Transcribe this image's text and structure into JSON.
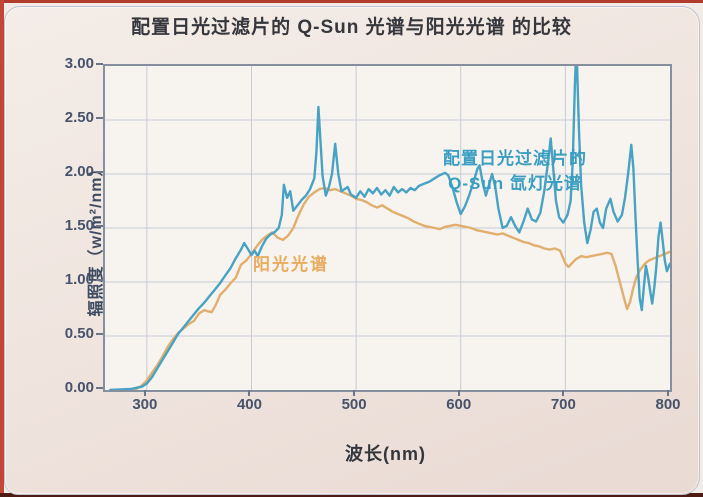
{
  "page": {
    "title": "配置日光过滤片的 Q-Sun 光谱与阳光光谱 的比较"
  },
  "chart_data": {
    "type": "line",
    "title": "配置日光过滤片的 Q-Sun 光谱与阳光光谱 的比较",
    "xlabel": "波长(nm)",
    "ylabel": "辐照度（w/m²/nm）",
    "xlim": [
      260,
      800
    ],
    "ylim": [
      0,
      3.0
    ],
    "grid": true,
    "legend_position": "inline-annotations",
    "xticks": [
      300,
      400,
      500,
      600,
      700,
      800
    ],
    "xtick_labels": [
      "300",
      "400",
      "500",
      "600",
      "700",
      "800"
    ],
    "yticks": [
      0,
      0.5,
      1.0,
      1.5,
      2.0,
      2.5,
      3.0
    ],
    "ytick_labels": [
      "0.00",
      "0.50",
      "1.00",
      "1.50",
      "2.00",
      "2.50",
      "3.00"
    ],
    "annotations": [
      {
        "lines": [
          "配置日光过滤片的",
          "Q-Sun 氙灯光谱"
        ],
        "color": "#3a9ec2",
        "series": "qsun"
      },
      {
        "lines": [
          "阳光光谱"
        ],
        "color": "#e9ab5e",
        "series": "sunlight"
      }
    ],
    "series": [
      {
        "id": "sunlight",
        "name": "阳光光谱",
        "color": "#e2ae6e",
        "width": 2.4,
        "points": [
          [
            265,
            0.0
          ],
          [
            285,
            0.0
          ],
          [
            290,
            0.01
          ],
          [
            295,
            0.04
          ],
          [
            300,
            0.09
          ],
          [
            305,
            0.16
          ],
          [
            310,
            0.23
          ],
          [
            315,
            0.31
          ],
          [
            320,
            0.4
          ],
          [
            325,
            0.47
          ],
          [
            330,
            0.53
          ],
          [
            335,
            0.57
          ],
          [
            340,
            0.61
          ],
          [
            345,
            0.64
          ],
          [
            350,
            0.71
          ],
          [
            355,
            0.74
          ],
          [
            358,
            0.73
          ],
          [
            362,
            0.72
          ],
          [
            366,
            0.79
          ],
          [
            370,
            0.88
          ],
          [
            375,
            0.93
          ],
          [
            380,
            0.99
          ],
          [
            385,
            1.04
          ],
          [
            390,
            1.16
          ],
          [
            395,
            1.2
          ],
          [
            400,
            1.26
          ],
          [
            405,
            1.33
          ],
          [
            410,
            1.39
          ],
          [
            415,
            1.43
          ],
          [
            420,
            1.46
          ],
          [
            425,
            1.41
          ],
          [
            430,
            1.39
          ],
          [
            435,
            1.43
          ],
          [
            440,
            1.5
          ],
          [
            445,
            1.62
          ],
          [
            450,
            1.72
          ],
          [
            455,
            1.79
          ],
          [
            460,
            1.83
          ],
          [
            465,
            1.86
          ],
          [
            470,
            1.87
          ],
          [
            475,
            1.85
          ],
          [
            480,
            1.86
          ],
          [
            485,
            1.84
          ],
          [
            490,
            1.82
          ],
          [
            495,
            1.8
          ],
          [
            500,
            1.77
          ],
          [
            505,
            1.76
          ],
          [
            510,
            1.74
          ],
          [
            515,
            1.71
          ],
          [
            520,
            1.69
          ],
          [
            525,
            1.71
          ],
          [
            530,
            1.68
          ],
          [
            535,
            1.65
          ],
          [
            540,
            1.63
          ],
          [
            545,
            1.61
          ],
          [
            550,
            1.59
          ],
          [
            555,
            1.56
          ],
          [
            560,
            1.54
          ],
          [
            565,
            1.52
          ],
          [
            570,
            1.51
          ],
          [
            575,
            1.5
          ],
          [
            580,
            1.49
          ],
          [
            585,
            1.51
          ],
          [
            590,
            1.52
          ],
          [
            595,
            1.53
          ],
          [
            600,
            1.52
          ],
          [
            605,
            1.51
          ],
          [
            610,
            1.5
          ],
          [
            615,
            1.48
          ],
          [
            620,
            1.47
          ],
          [
            625,
            1.46
          ],
          [
            630,
            1.45
          ],
          [
            635,
            1.44
          ],
          [
            640,
            1.45
          ],
          [
            645,
            1.43
          ],
          [
            650,
            1.41
          ],
          [
            655,
            1.39
          ],
          [
            660,
            1.37
          ],
          [
            665,
            1.36
          ],
          [
            670,
            1.34
          ],
          [
            675,
            1.33
          ],
          [
            680,
            1.31
          ],
          [
            685,
            1.3
          ],
          [
            690,
            1.31
          ],
          [
            695,
            1.29
          ],
          [
            700,
            1.17
          ],
          [
            703,
            1.14
          ],
          [
            706,
            1.17
          ],
          [
            710,
            1.21
          ],
          [
            715,
            1.24
          ],
          [
            720,
            1.23
          ],
          [
            725,
            1.24
          ],
          [
            730,
            1.25
          ],
          [
            735,
            1.26
          ],
          [
            740,
            1.27
          ],
          [
            744,
            1.26
          ],
          [
            748,
            1.15
          ],
          [
            752,
            1.0
          ],
          [
            756,
            0.85
          ],
          [
            759,
            0.75
          ],
          [
            762,
            0.82
          ],
          [
            765,
            0.95
          ],
          [
            768,
            1.05
          ],
          [
            772,
            1.12
          ],
          [
            776,
            1.17
          ],
          [
            780,
            1.2
          ],
          [
            785,
            1.22
          ],
          [
            790,
            1.24
          ],
          [
            795,
            1.26
          ],
          [
            800,
            1.28
          ]
        ]
      },
      {
        "id": "qsun",
        "name": "配置日光过滤片的 Q-Sun 氙灯光谱",
        "color": "#48a2c4",
        "width": 2.4,
        "points": [
          [
            265,
            0.0
          ],
          [
            285,
            0.01
          ],
          [
            290,
            0.02
          ],
          [
            295,
            0.03
          ],
          [
            300,
            0.06
          ],
          [
            305,
            0.12
          ],
          [
            310,
            0.2
          ],
          [
            315,
            0.28
          ],
          [
            320,
            0.36
          ],
          [
            325,
            0.44
          ],
          [
            330,
            0.52
          ],
          [
            335,
            0.58
          ],
          [
            340,
            0.64
          ],
          [
            345,
            0.7
          ],
          [
            350,
            0.76
          ],
          [
            355,
            0.81
          ],
          [
            360,
            0.87
          ],
          [
            365,
            0.93
          ],
          [
            370,
            0.99
          ],
          [
            375,
            1.06
          ],
          [
            380,
            1.13
          ],
          [
            385,
            1.22
          ],
          [
            390,
            1.3
          ],
          [
            393,
            1.36
          ],
          [
            397,
            1.3
          ],
          [
            400,
            1.25
          ],
          [
            403,
            1.29
          ],
          [
            406,
            1.24
          ],
          [
            410,
            1.33
          ],
          [
            414,
            1.4
          ],
          [
            418,
            1.44
          ],
          [
            422,
            1.46
          ],
          [
            426,
            1.5
          ],
          [
            429,
            1.62
          ],
          [
            431,
            1.9
          ],
          [
            434,
            1.78
          ],
          [
            437,
            1.84
          ],
          [
            440,
            1.66
          ],
          [
            444,
            1.71
          ],
          [
            448,
            1.76
          ],
          [
            452,
            1.8
          ],
          [
            456,
            1.86
          ],
          [
            460,
            1.96
          ],
          [
            462,
            2.2
          ],
          [
            464,
            2.62
          ],
          [
            466,
            2.3
          ],
          [
            468,
            1.98
          ],
          [
            471,
            1.8
          ],
          [
            474,
            1.88
          ],
          [
            477,
            2.0
          ],
          [
            480,
            2.28
          ],
          [
            483,
            2.0
          ],
          [
            486,
            1.84
          ],
          [
            489,
            1.86
          ],
          [
            492,
            1.88
          ],
          [
            495,
            1.81
          ],
          [
            500,
            1.78
          ],
          [
            504,
            1.84
          ],
          [
            508,
            1.79
          ],
          [
            512,
            1.86
          ],
          [
            516,
            1.82
          ],
          [
            520,
            1.87
          ],
          [
            524,
            1.81
          ],
          [
            528,
            1.85
          ],
          [
            532,
            1.8
          ],
          [
            536,
            1.88
          ],
          [
            540,
            1.83
          ],
          [
            544,
            1.86
          ],
          [
            548,
            1.83
          ],
          [
            552,
            1.87
          ],
          [
            556,
            1.85
          ],
          [
            560,
            1.89
          ],
          [
            565,
            1.91
          ],
          [
            570,
            1.93
          ],
          [
            575,
            1.96
          ],
          [
            580,
            1.99
          ],
          [
            585,
            2.01
          ],
          [
            588,
            1.99
          ],
          [
            592,
            1.88
          ],
          [
            596,
            1.74
          ],
          [
            600,
            1.63
          ],
          [
            604,
            1.7
          ],
          [
            608,
            1.8
          ],
          [
            612,
            1.92
          ],
          [
            616,
            2.05
          ],
          [
            618,
            2.08
          ],
          [
            621,
            1.92
          ],
          [
            624,
            1.8
          ],
          [
            627,
            1.9
          ],
          [
            630,
            2.0
          ],
          [
            633,
            1.88
          ],
          [
            636,
            1.68
          ],
          [
            640,
            1.5
          ],
          [
            644,
            1.52
          ],
          [
            648,
            1.6
          ],
          [
            652,
            1.52
          ],
          [
            656,
            1.46
          ],
          [
            660,
            1.56
          ],
          [
            664,
            1.68
          ],
          [
            668,
            1.58
          ],
          [
            672,
            1.56
          ],
          [
            676,
            1.64
          ],
          [
            680,
            1.85
          ],
          [
            684,
            2.15
          ],
          [
            686,
            2.33
          ],
          [
            688,
            2.1
          ],
          [
            691,
            1.75
          ],
          [
            694,
            1.6
          ],
          [
            698,
            1.55
          ],
          [
            702,
            1.62
          ],
          [
            705,
            1.75
          ],
          [
            707,
            2.1
          ],
          [
            709,
            2.8
          ],
          [
            710,
            3.05
          ],
          [
            711,
            3.05
          ],
          [
            713,
            2.4
          ],
          [
            715,
            1.9
          ],
          [
            718,
            1.55
          ],
          [
            721,
            1.36
          ],
          [
            724,
            1.48
          ],
          [
            727,
            1.65
          ],
          [
            730,
            1.68
          ],
          [
            733,
            1.55
          ],
          [
            736,
            1.5
          ],
          [
            739,
            1.68
          ],
          [
            743,
            1.77
          ],
          [
            746,
            1.65
          ],
          [
            750,
            1.56
          ],
          [
            754,
            1.62
          ],
          [
            757,
            1.78
          ],
          [
            760,
            2.0
          ],
          [
            763,
            2.27
          ],
          [
            765,
            2.05
          ],
          [
            767,
            1.6
          ],
          [
            769,
            1.2
          ],
          [
            771,
            0.85
          ],
          [
            773,
            0.74
          ],
          [
            775,
            0.95
          ],
          [
            777,
            1.15
          ],
          [
            779,
            1.05
          ],
          [
            781,
            0.92
          ],
          [
            783,
            0.8
          ],
          [
            785,
            0.95
          ],
          [
            787,
            1.15
          ],
          [
            789,
            1.42
          ],
          [
            791,
            1.55
          ],
          [
            793,
            1.38
          ],
          [
            795,
            1.2
          ],
          [
            797,
            1.1
          ],
          [
            800,
            1.17
          ]
        ]
      }
    ],
    "style": {
      "plot_background": "#f7f4f0",
      "grid_color": "#c6cad4",
      "frame_color": "#858f9d",
      "tick_label_color": "#46536a",
      "title_color": "#35373c"
    }
  }
}
